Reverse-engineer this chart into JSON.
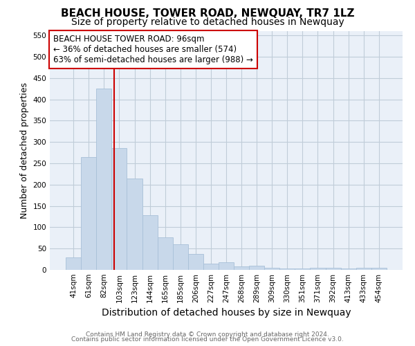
{
  "title": "BEACH HOUSE, TOWER ROAD, NEWQUAY, TR7 1LZ",
  "subtitle": "Size of property relative to detached houses in Newquay",
  "xlabel": "Distribution of detached houses by size in Newquay",
  "ylabel": "Number of detached properties",
  "footnote1": "Contains HM Land Registry data © Crown copyright and database right 2024.",
  "footnote2": "Contains public sector information licensed under the Open Government Licence v3.0.",
  "bar_labels": [
    "41sqm",
    "61sqm",
    "82sqm",
    "103sqm",
    "123sqm",
    "144sqm",
    "165sqm",
    "185sqm",
    "206sqm",
    "227sqm",
    "247sqm",
    "268sqm",
    "289sqm",
    "309sqm",
    "330sqm",
    "351sqm",
    "371sqm",
    "392sqm",
    "413sqm",
    "433sqm",
    "454sqm"
  ],
  "bar_values": [
    30,
    265,
    425,
    285,
    215,
    128,
    77,
    60,
    38,
    15,
    18,
    8,
    10,
    5,
    3,
    3,
    5,
    5,
    4,
    5,
    5
  ],
  "bar_color": "#c8d8ea",
  "bar_edge_color": "#a8c0d8",
  "bar_width": 1.0,
  "red_line_x": 2.667,
  "red_line_color": "#cc0000",
  "annotation_text": "BEACH HOUSE TOWER ROAD: 96sqm\n← 36% of detached houses are smaller (574)\n63% of semi-detached houses are larger (988) →",
  "annotation_box_color": "white",
  "annotation_box_edge": "#cc0000",
  "ylim": [
    0,
    560
  ],
  "yticks": [
    0,
    50,
    100,
    150,
    200,
    250,
    300,
    350,
    400,
    450,
    500,
    550
  ],
  "grid_color": "#c0ccd8",
  "background_color": "#eaf0f8",
  "title_fontsize": 11,
  "subtitle_fontsize": 10,
  "xlabel_fontsize": 10,
  "ylabel_fontsize": 9,
  "tick_fontsize": 7.5,
  "annotation_fontsize": 8.5,
  "footnote_fontsize": 6.5
}
